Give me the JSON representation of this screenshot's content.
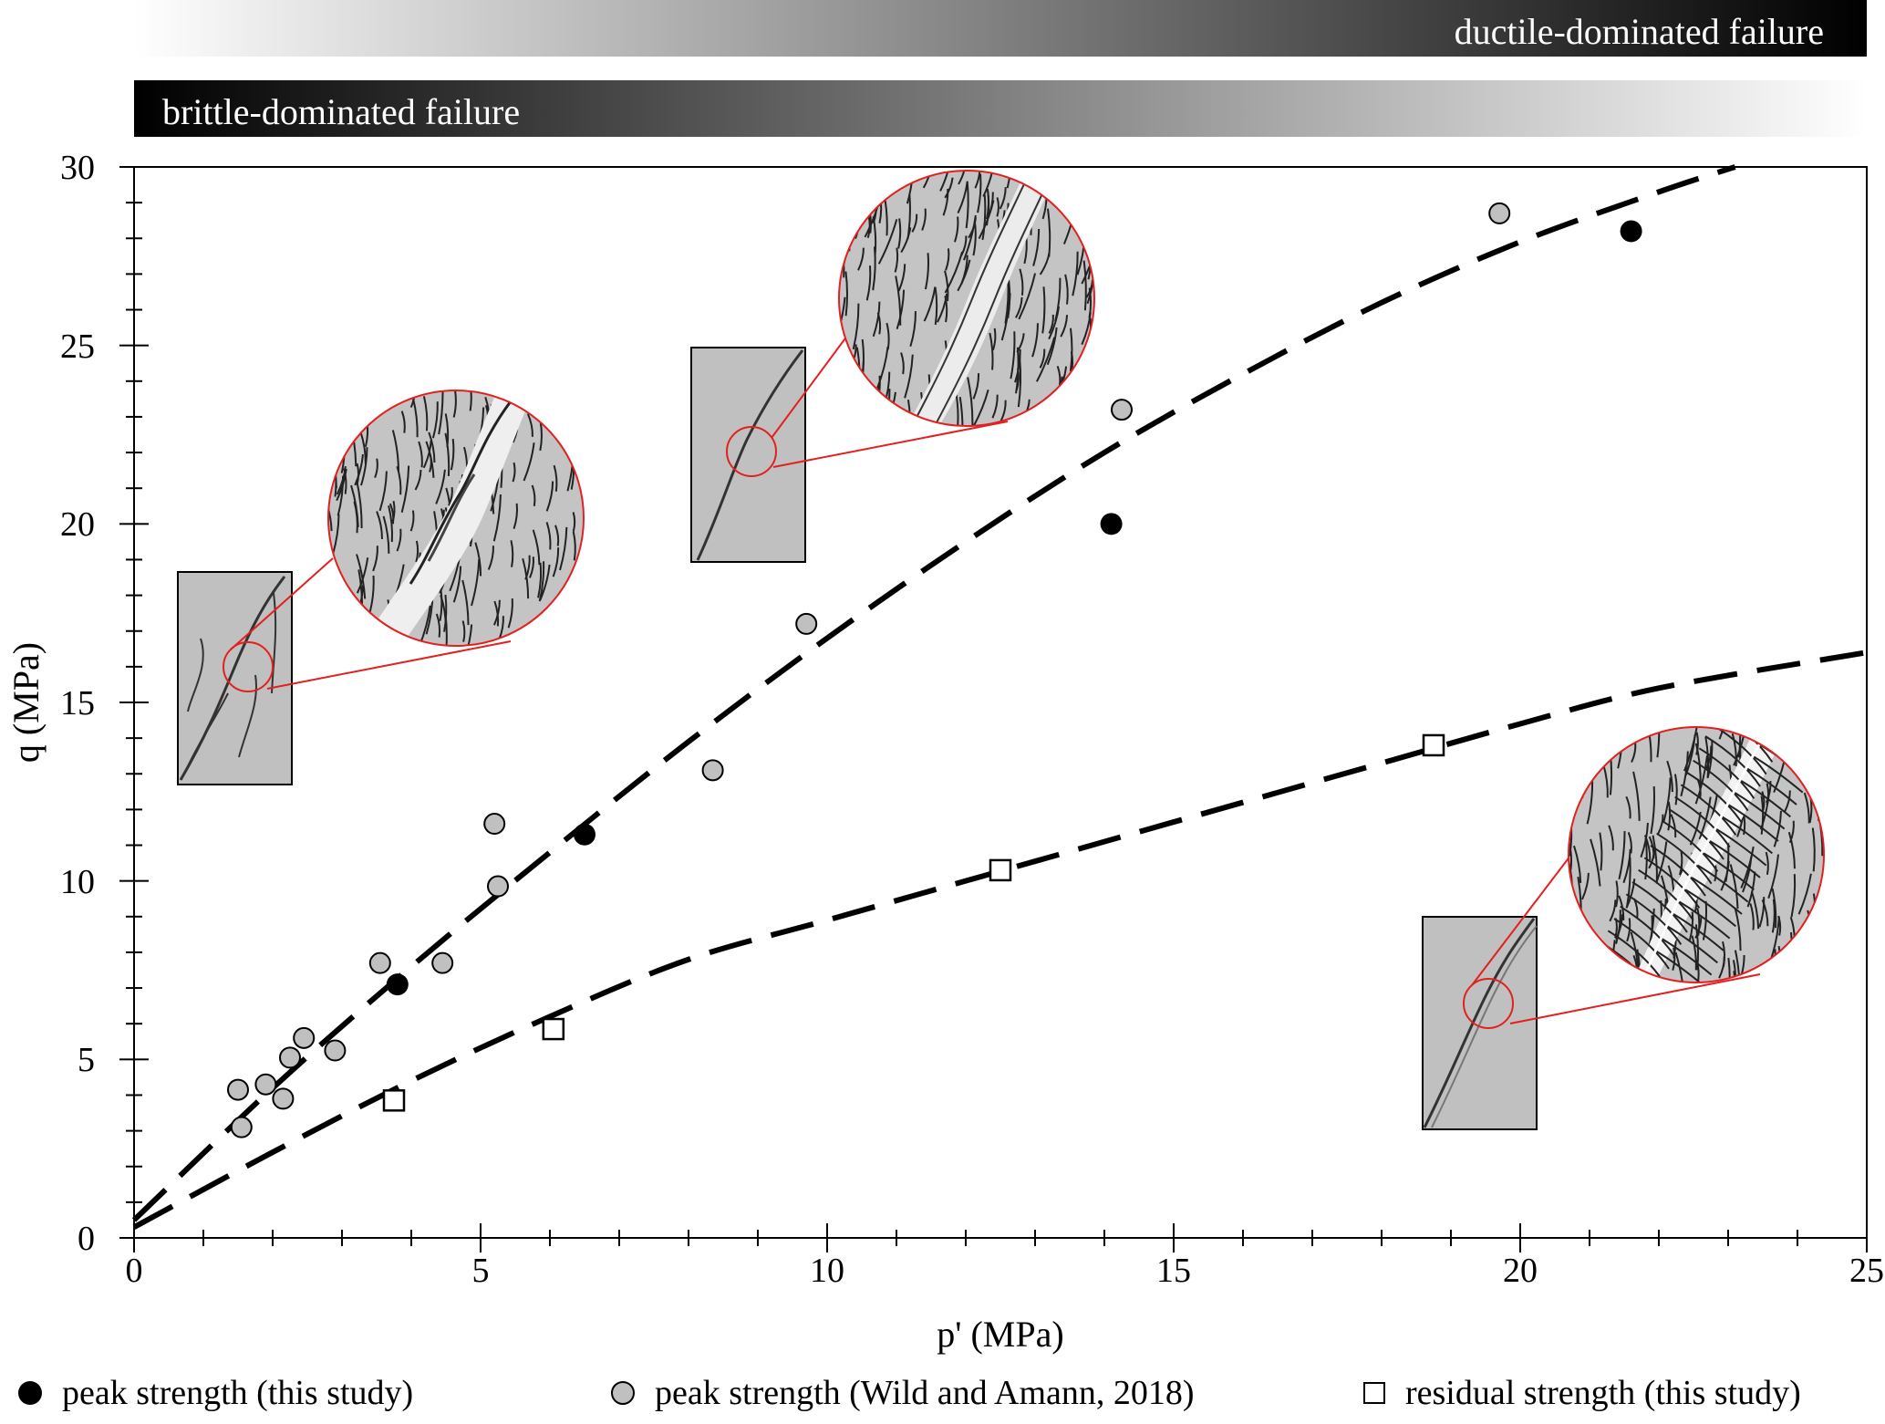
{
  "chart_data": {
    "type": "scatter",
    "xlabel": "p' (MPa)",
    "ylabel": "q (MPa)",
    "xlim": [
      0,
      25
    ],
    "ylim": [
      0,
      30
    ],
    "x_ticks": [
      "0",
      "5",
      "10",
      "15",
      "20",
      "25"
    ],
    "y_ticks": [
      "0",
      "5",
      "10",
      "15",
      "20",
      "25",
      "30"
    ],
    "bands": {
      "top_label": "ductile-dominated failure",
      "bottom_label": "brittle-dominated failure"
    },
    "series": [
      {
        "name": "peak strength (this study)",
        "marker": "black-circle",
        "color": "#000000",
        "points": [
          [
            3.8,
            7.1
          ],
          [
            6.5,
            11.3
          ],
          [
            14.1,
            20.0
          ],
          [
            21.6,
            28.2
          ]
        ]
      },
      {
        "name": "peak strength (Wild and Amann, 2018)",
        "marker": "gray-circle",
        "color": "#c0c0c0",
        "points": [
          [
            1.5,
            4.15
          ],
          [
            1.55,
            3.1
          ],
          [
            1.9,
            4.3
          ],
          [
            2.15,
            3.9
          ],
          [
            2.25,
            5.05
          ],
          [
            2.45,
            5.6
          ],
          [
            2.9,
            5.25
          ],
          [
            3.55,
            7.7
          ],
          [
            4.45,
            7.7
          ],
          [
            5.2,
            11.6
          ],
          [
            5.25,
            9.85
          ],
          [
            8.35,
            13.1
          ],
          [
            9.7,
            17.2
          ],
          [
            14.25,
            23.2
          ],
          [
            19.7,
            28.7
          ]
        ]
      },
      {
        "name": "residual strength (this study)",
        "marker": "white-square",
        "color": "#ffffff",
        "points": [
          [
            3.75,
            3.85
          ],
          [
            6.05,
            5.85
          ],
          [
            12.5,
            10.3
          ],
          [
            18.75,
            13.8
          ]
        ]
      }
    ],
    "fit_curves": [
      {
        "for": "peak strength",
        "style": "dashed",
        "points": [
          [
            0,
            0.5
          ],
          [
            2,
            4.2
          ],
          [
            4,
            7.6
          ],
          [
            6,
            10.8
          ],
          [
            8,
            13.9
          ],
          [
            10,
            16.8
          ],
          [
            12,
            19.5
          ],
          [
            14,
            22.0
          ],
          [
            16,
            24.2
          ],
          [
            18,
            26.2
          ],
          [
            20,
            27.9
          ],
          [
            22,
            29.3
          ],
          [
            23.1,
            30.0
          ]
        ]
      },
      {
        "for": "residual strength",
        "style": "dashed",
        "points": [
          [
            0,
            0.3
          ],
          [
            2,
            2.4
          ],
          [
            4,
            4.4
          ],
          [
            6,
            6.2
          ],
          [
            8,
            7.8
          ],
          [
            10,
            8.9
          ],
          [
            12,
            10.0
          ],
          [
            14,
            11.1
          ],
          [
            16,
            12.2
          ],
          [
            18,
            13.3
          ],
          [
            20,
            14.4
          ],
          [
            22,
            15.4
          ],
          [
            25,
            16.4
          ]
        ]
      }
    ],
    "insets": [
      {
        "name": "inset-low-confinement",
        "target": [
          1.65,
          15.9
        ],
        "zoom_style": "conjugate fractures"
      },
      {
        "name": "inset-mid-confinement",
        "target": [
          8.95,
          22.1
        ],
        "zoom_style": "single shear band"
      },
      {
        "name": "inset-high-confinement",
        "target": [
          19.6,
          6.6
        ],
        "zoom_style": "ductile folding"
      }
    ],
    "grid": false,
    "legend_position": "bottom"
  },
  "colors": {
    "zoom_lines": "#e32020",
    "specimen_fill": "#c0c0c0",
    "gray_marker": "#c0c0c0"
  }
}
